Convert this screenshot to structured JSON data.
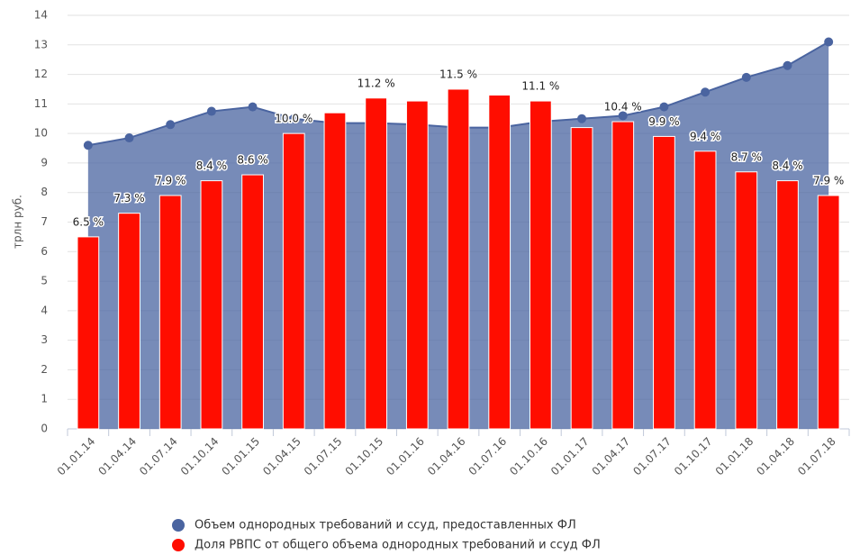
{
  "chart_data": {
    "type": "bar",
    "y_label": "трлн руб.",
    "categories": [
      "01.01.14",
      "01.04.14",
      "01.07.14",
      "01.10.14",
      "01.01.15",
      "01.04.15",
      "01.07.15",
      "01.10.15",
      "01.01.16",
      "01.04.16",
      "01.07.16",
      "01.10.16",
      "01.01.17",
      "01.04.17",
      "01.07.17",
      "01.10.17",
      "01.01.18",
      "01.04.18",
      "01.07.18"
    ],
    "ylim": [
      0,
      14
    ],
    "yticks": [
      0,
      1,
      2,
      3,
      4,
      5,
      6,
      7,
      8,
      9,
      10,
      11,
      12,
      13,
      14
    ],
    "grid": true,
    "series": [
      {
        "name": "Объем однородных требований и ссуд, предоставленных ФЛ",
        "type": "area",
        "color": "#4a64a0",
        "values": [
          9.6,
          9.85,
          10.3,
          10.75,
          10.9,
          10.5,
          10.35,
          10.35,
          10.3,
          10.2,
          10.2,
          10.4,
          10.5,
          10.6,
          10.9,
          11.4,
          11.9,
          12.3,
          13.1
        ]
      },
      {
        "name": "Доля РВПС от общего объема однородных требований и ссуд ФЛ",
        "type": "bar",
        "color": "#ff0d00",
        "values": [
          6.5,
          7.3,
          7.9,
          8.4,
          8.6,
          10.0,
          10.7,
          11.2,
          11.1,
          11.5,
          11.3,
          11.1,
          10.2,
          10.4,
          9.9,
          9.4,
          8.7,
          8.4,
          7.9
        ],
        "value_labels": [
          "6.5 %",
          "7.3 %",
          "7.9 %",
          "8.4 %",
          "8.6 %",
          "10.0 %",
          null,
          "11.2 %",
          null,
          "11.5 %",
          null,
          "11.1 %",
          null,
          "10.4 %",
          "9.9 %",
          "9.4 %",
          "8.7 %",
          "8.4 %",
          "7.9 %"
        ]
      }
    ],
    "legend": "bottom"
  }
}
